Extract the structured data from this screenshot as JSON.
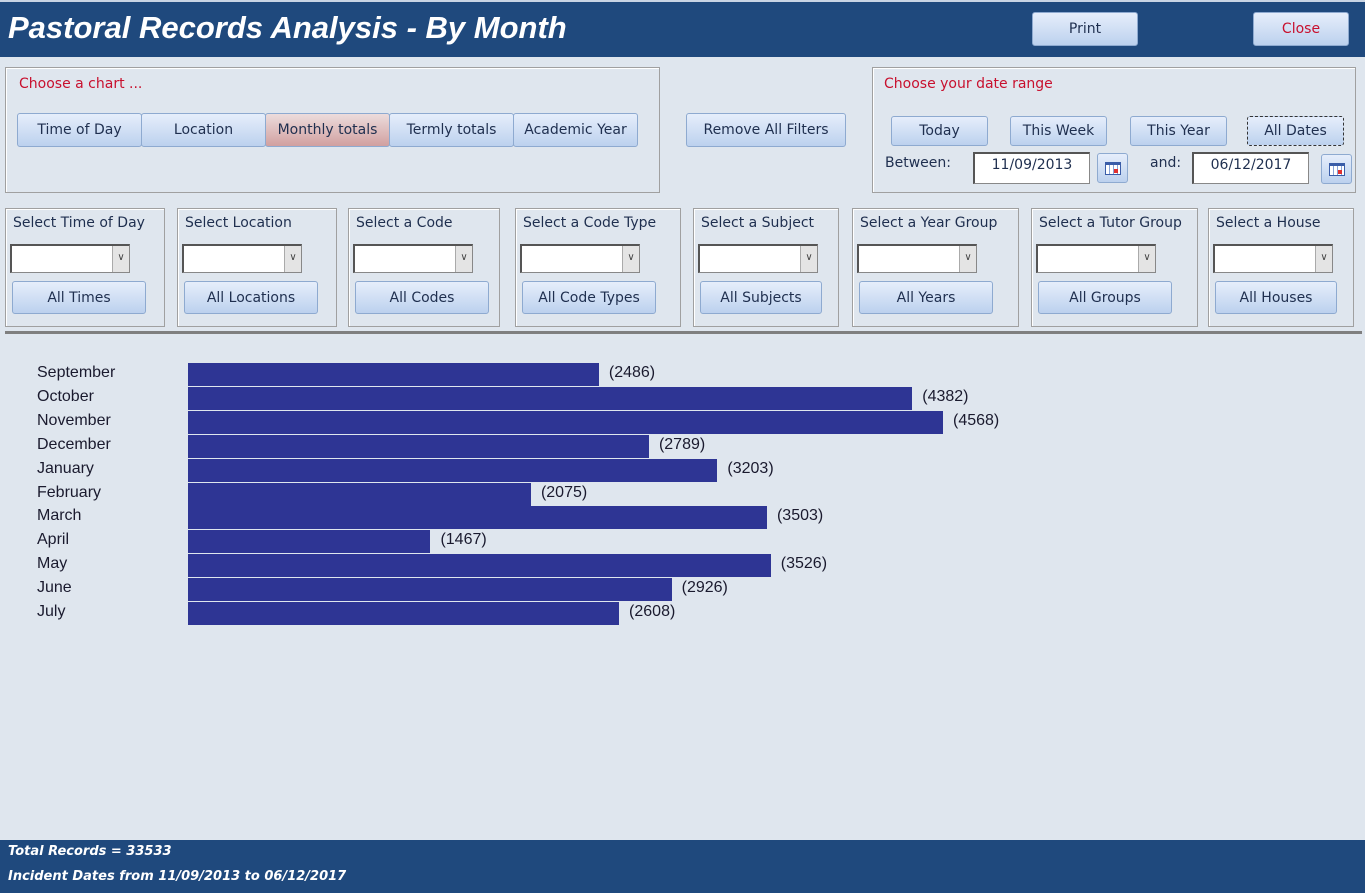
{
  "header": {
    "title": "Pastoral Records Analysis - By Month",
    "print": "Print",
    "close": "Close"
  },
  "chart_chooser": {
    "label": "Choose a chart ...",
    "buttons": [
      "Time of Day",
      "Location",
      "Monthly totals",
      "Termly totals",
      "Academic Year"
    ],
    "selected": "Monthly totals"
  },
  "remove_filters": "Remove All Filters",
  "date_range": {
    "label": "Choose your date range",
    "buttons": [
      "Today",
      "This Week",
      "This Year",
      "All Dates"
    ],
    "between_label": "Between:",
    "from": "11/09/2013",
    "and_label": "and:",
    "to": "06/12/2017"
  },
  "filters": [
    {
      "label": "Select Time of Day",
      "button": "All Times"
    },
    {
      "label": "Select Location",
      "button": "All Locations"
    },
    {
      "label": "Select a Code",
      "button": "All Codes"
    },
    {
      "label": "Select a Code Type",
      "button": "All Code Types"
    },
    {
      "label": "Select a Subject",
      "button": "All Subjects"
    },
    {
      "label": "Select a Year Group",
      "button": "All Years"
    },
    {
      "label": "Select a Tutor Group",
      "button": "All Groups"
    },
    {
      "label": "Select a House",
      "button": "All Houses"
    }
  ],
  "chart_data": {
    "type": "bar",
    "orientation": "horizontal",
    "categories": [
      "September",
      "October",
      "November",
      "December",
      "January",
      "February",
      "March",
      "April",
      "May",
      "June",
      "July"
    ],
    "values": [
      2486,
      4382,
      4568,
      2789,
      3203,
      2075,
      3503,
      1467,
      3526,
      2926,
      2608
    ],
    "color": "#2e3594"
  },
  "footer": {
    "total": "Total Records = 33533",
    "dates": "Incident Dates from 11/09/2013 to 06/12/2017"
  }
}
